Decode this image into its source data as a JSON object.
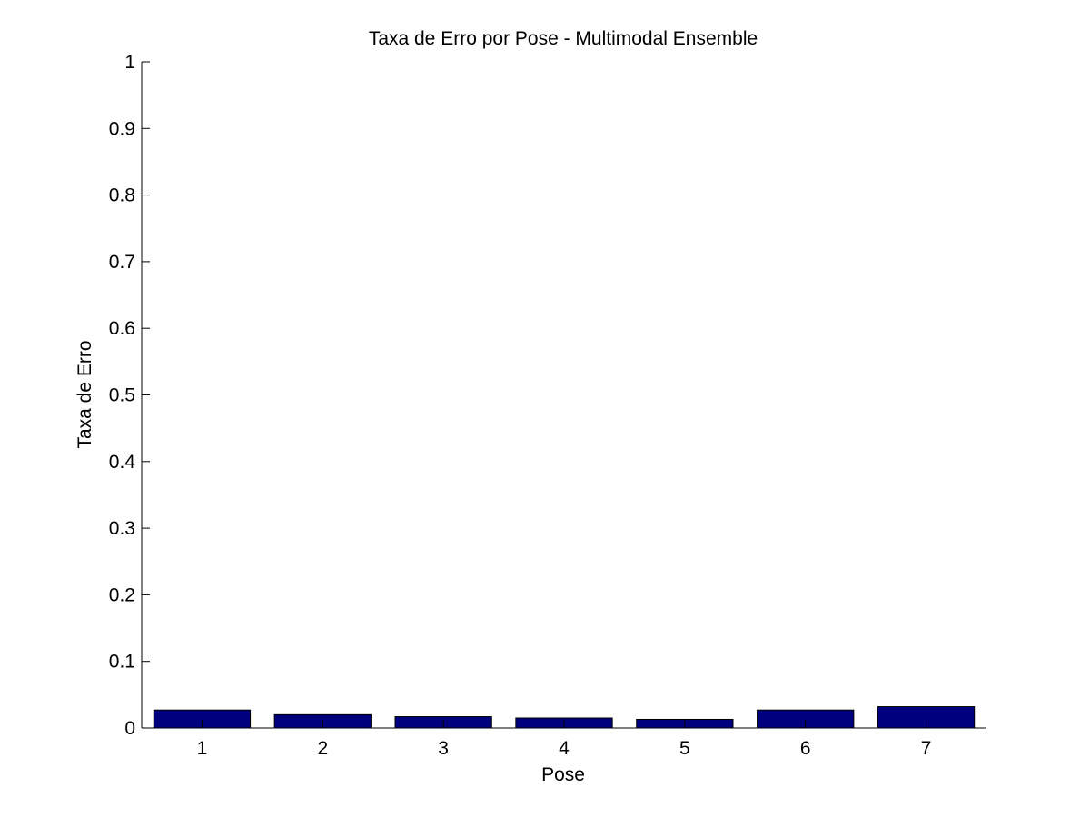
{
  "chart_data": {
    "type": "bar",
    "title": "Taxa de Erro por Pose - Multimodal Ensemble",
    "xlabel": "Pose",
    "ylabel": "Taxa de Erro",
    "categories": [
      "1",
      "2",
      "3",
      "4",
      "5",
      "6",
      "7"
    ],
    "values": [
      0.027,
      0.02,
      0.017,
      0.015,
      0.013,
      0.027,
      0.032
    ],
    "ylim": [
      0,
      1
    ],
    "yticks": [
      "0",
      "0.1",
      "0.2",
      "0.3",
      "0.4",
      "0.5",
      "0.6",
      "0.7",
      "0.8",
      "0.9",
      "1"
    ],
    "grid": false,
    "bar_color": "#00007f",
    "bar_edge_color": "#000000"
  }
}
